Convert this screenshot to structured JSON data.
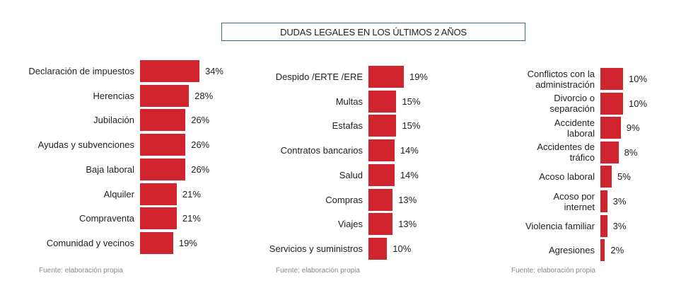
{
  "chart_data": {
    "type": "bar",
    "orientation": "horizontal",
    "title": "DUDAS LEGALES EN LOS ÚLTIMOS 2 AÑOS",
    "color": "#d0252f",
    "panels": [
      {
        "categories": [
          "Declaración de impuestos",
          "Herencias",
          "Jubilación",
          "Ayudas y subvenciones",
          "Baja laboral",
          "Alquiler",
          "Compraventa",
          "Comunidad y vecinos"
        ],
        "values": [
          34,
          28,
          26,
          26,
          26,
          21,
          21,
          19
        ],
        "labels": [
          "34%",
          "28%",
          "26%",
          "26%",
          "26%",
          "21%",
          "21%",
          "19%"
        ],
        "source": "Fuente: elaboración propia"
      },
      {
        "categories": [
          "Despido /ERTE /ERE",
          "Multas",
          "Estafas",
          "Contratos bancarios",
          "Salud",
          "Compras",
          "Viajes",
          "Servicios y suministros"
        ],
        "values": [
          19,
          15,
          15,
          14,
          14,
          13,
          13,
          10
        ],
        "labels": [
          "19%",
          "15%",
          "15%",
          "14%",
          "14%",
          "13%",
          "13%",
          "10%"
        ],
        "source": "Fuente: elaboración propia"
      },
      {
        "categories": [
          "Conflictos con la\nadministración",
          "Divorcio o\nseparación",
          "Accidente\nlaboral",
          "Accidentes de\ntráfico",
          "Acoso laboral",
          "Acoso por\ninternet",
          "Violencia familiar",
          "Agresiones"
        ],
        "values": [
          10,
          10,
          9,
          8,
          5,
          3,
          3,
          2
        ],
        "labels": [
          "10%",
          "10%",
          "9%",
          "8%",
          "5%",
          "3%",
          "3%",
          "2%"
        ],
        "source": "Fuente: elaboración propia"
      }
    ]
  }
}
